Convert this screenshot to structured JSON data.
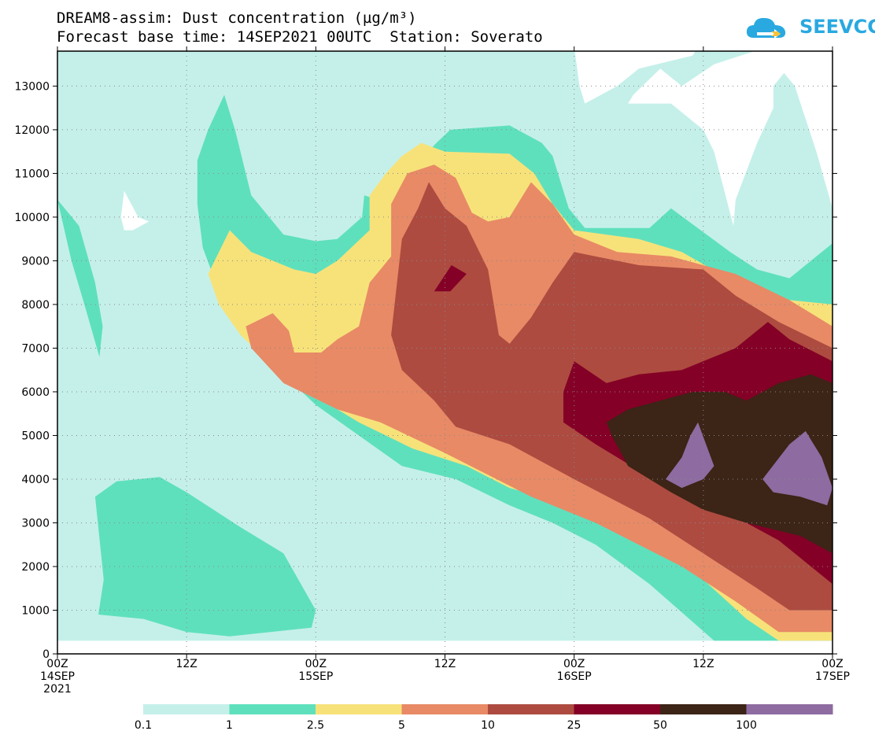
{
  "chart_data": {
    "type": "heatmap",
    "title": "DREAM8-assim: Dust concentration (µg/m³)",
    "subtitle": "Forecast base time: 14SEP2021 00UTC  Station: Soverato",
    "xlabel": "",
    "ylabel": "",
    "x_hours": [
      0,
      12,
      24,
      36,
      48,
      60,
      72
    ],
    "x_tick_labels": [
      {
        "line1": "00Z",
        "line2": "14SEP",
        "line3": "2021"
      },
      {
        "line1": "12Z",
        "line2": "",
        "line3": ""
      },
      {
        "line1": "00Z",
        "line2": "15SEP",
        "line3": ""
      },
      {
        "line1": "12Z",
        "line2": "",
        "line3": ""
      },
      {
        "line1": "00Z",
        "line2": "16SEP",
        "line3": ""
      },
      {
        "line1": "12Z",
        "line2": "",
        "line3": ""
      },
      {
        "line1": "00Z",
        "line2": "17SEP",
        "line3": ""
      }
    ],
    "xlim": [
      0,
      72
    ],
    "y_ticks": [
      0,
      1000,
      2000,
      3000,
      4000,
      5000,
      6000,
      7000,
      8000,
      9000,
      10000,
      11000,
      12000,
      13000
    ],
    "ylim": [
      0,
      13800
    ],
    "grid": true,
    "levels": [
      0.1,
      1,
      2.5,
      5,
      10,
      25,
      50,
      100
    ],
    "level_labels": [
      "0.1",
      "1",
      "2.5",
      "5",
      "10",
      "25",
      "50",
      "100"
    ],
    "colors": [
      "#c5f0ea",
      "#5fe0bd",
      "#f7e27a",
      "#e88a66",
      "#ad4b40",
      "#840026",
      "#3c2416",
      "#8e6ba1"
    ],
    "surface_top_m": 300,
    "contours": [
      {
        "level": 0.1,
        "fill": "#c5f0ea",
        "base": true
      },
      {
        "level": 1,
        "fill": "#5fe0bd",
        "polygons": [
          [
            [
              0,
              10400
            ],
            [
              1.3,
              9000
            ],
            [
              2.5,
              8000
            ],
            [
              3.9,
              6800
            ],
            [
              4.2,
              7500
            ],
            [
              3.5,
              8500
            ],
            [
              2,
              9800
            ],
            [
              0,
              10400
            ]
          ],
          [
            [
              3.5,
              3600
            ],
            [
              5.5,
              3950
            ],
            [
              9.5,
              4050
            ],
            [
              12,
              3700
            ],
            [
              17,
              2900
            ],
            [
              21,
              2300
            ],
            [
              24,
              1000
            ],
            [
              23.6,
              600
            ],
            [
              16,
              400
            ],
            [
              12,
              500
            ],
            [
              8,
              800
            ],
            [
              3.8,
              900
            ],
            [
              4.3,
              1700
            ]
          ],
          [
            [
              13,
              11300
            ],
            [
              14,
              12000
            ],
            [
              15.5,
              12800
            ],
            [
              16.5,
              12000
            ],
            [
              18,
              10500
            ],
            [
              21,
              9600
            ],
            [
              24,
              9450
            ],
            [
              26,
              9500
            ],
            [
              28.3,
              10000
            ],
            [
              28.5,
              10500
            ],
            [
              31,
              10300
            ],
            [
              33,
              10700
            ],
            [
              33.3,
              11200
            ],
            [
              35.2,
              11700
            ],
            [
              36.5,
              12000
            ],
            [
              42,
              12100
            ],
            [
              45,
              11700
            ],
            [
              46,
              11400
            ],
            [
              47.5,
              10200
            ],
            [
              49,
              9750
            ],
            [
              55,
              9750
            ],
            [
              57,
              10200
            ],
            [
              62.5,
              9200
            ],
            [
              65,
              8800
            ],
            [
              68,
              8600
            ],
            [
              70,
              9000
            ],
            [
              72,
              9400
            ],
            [
              72,
              300
            ],
            [
              67,
              300
            ],
            [
              61,
              300
            ],
            [
              55,
              1600
            ],
            [
              50,
              2500
            ],
            [
              46,
              3000
            ],
            [
              42,
              3400
            ],
            [
              37,
              4000
            ],
            [
              32,
              4300
            ],
            [
              28,
              5000
            ],
            [
              24,
              5700
            ],
            [
              21,
              6400
            ],
            [
              17,
              7300
            ],
            [
              15,
              8300
            ],
            [
              13.5,
              9300
            ],
            [
              13,
              10300
            ]
          ]
        ]
      },
      {
        "level": 2.5,
        "fill": "#f7e27a",
        "polygons": [
          [
            [
              14,
              8700
            ],
            [
              16,
              9700
            ],
            [
              18,
              9200
            ],
            [
              22,
              8800
            ],
            [
              24,
              8700
            ],
            [
              26,
              9000
            ],
            [
              29,
              9700
            ],
            [
              29,
              10500
            ],
            [
              30.5,
              11000
            ],
            [
              32,
              11400
            ],
            [
              33.8,
              11700
            ],
            [
              36,
              11500
            ],
            [
              42,
              11450
            ],
            [
              44.3,
              11000
            ],
            [
              46,
              10300
            ],
            [
              48,
              9700
            ],
            [
              54,
              9500
            ],
            [
              58,
              9200
            ],
            [
              63,
              8500
            ],
            [
              68,
              8100
            ],
            [
              72,
              8000
            ],
            [
              72,
              300
            ],
            [
              67,
              300
            ],
            [
              64,
              800
            ],
            [
              60,
              1700
            ],
            [
              54,
              2600
            ],
            [
              48,
              3400
            ],
            [
              42,
              3800
            ],
            [
              38,
              4300
            ],
            [
              33,
              4700
            ],
            [
              28,
              5300
            ],
            [
              24,
              5900
            ],
            [
              20,
              6600
            ],
            [
              17,
              7300
            ],
            [
              15,
              8000
            ]
          ]
        ]
      },
      {
        "level": 5,
        "fill": "#e88a66",
        "polygons": [
          [
            [
              17.5,
              7500
            ],
            [
              20,
              7800
            ],
            [
              21.5,
              7400
            ],
            [
              22,
              6900
            ],
            [
              24.5,
              6900
            ],
            [
              26,
              7200
            ],
            [
              28,
              7500
            ],
            [
              29,
              8500
            ],
            [
              31,
              9100
            ],
            [
              31,
              10300
            ],
            [
              32.5,
              11000
            ],
            [
              35,
              11200
            ],
            [
              37,
              10900
            ],
            [
              38.5,
              10100
            ],
            [
              40,
              9900
            ],
            [
              42,
              10000
            ],
            [
              44,
              10800
            ],
            [
              46,
              10300
            ],
            [
              48,
              9600
            ],
            [
              52,
              9200
            ],
            [
              57,
              9100
            ],
            [
              63,
              8700
            ],
            [
              68,
              8100
            ],
            [
              72,
              7500
            ],
            [
              72,
              500
            ],
            [
              67,
              500
            ],
            [
              63,
              1200
            ],
            [
              58,
              2000
            ],
            [
              50,
              3000
            ],
            [
              44,
              3600
            ],
            [
              36,
              4600
            ],
            [
              30,
              5300
            ],
            [
              26,
              5600
            ],
            [
              21,
              6200
            ],
            [
              18,
              7000
            ]
          ]
        ]
      },
      {
        "level": 10,
        "fill": "#ad4b40",
        "polygons": [
          [
            [
              32,
              9500
            ],
            [
              33.5,
              10200
            ],
            [
              34.5,
              10800
            ],
            [
              36,
              10200
            ],
            [
              38,
              9800
            ],
            [
              40,
              8800
            ],
            [
              41,
              7300
            ],
            [
              42,
              7100
            ],
            [
              44,
              7700
            ],
            [
              46,
              8500
            ],
            [
              48,
              9200
            ],
            [
              54,
              8900
            ],
            [
              60,
              8800
            ],
            [
              63,
              8200
            ],
            [
              67,
              7600
            ],
            [
              72,
              7000
            ],
            [
              72,
              1000
            ],
            [
              68,
              1000
            ],
            [
              65,
              1500
            ],
            [
              60,
              2300
            ],
            [
              55,
              3100
            ],
            [
              48,
              4000
            ],
            [
              42,
              4800
            ],
            [
              37,
              5200
            ],
            [
              35,
              5800
            ],
            [
              32,
              6500
            ],
            [
              31,
              7300
            ]
          ]
        ]
      },
      {
        "level": 25,
        "fill": "#840026",
        "polygons": [
          [
            [
              35,
              8300
            ],
            [
              36.6,
              8900
            ],
            [
              38,
              8700
            ],
            [
              36.5,
              8300
            ]
          ],
          [
            [
              47,
              6000
            ],
            [
              48,
              6700
            ],
            [
              51,
              6200
            ],
            [
              54,
              6400
            ],
            [
              58,
              6500
            ],
            [
              63,
              7000
            ],
            [
              66,
              7600
            ],
            [
              68,
              7200
            ],
            [
              72,
              6700
            ],
            [
              72,
              1600
            ],
            [
              67,
              2600
            ],
            [
              64,
              3000
            ],
            [
              58,
              3600
            ],
            [
              54,
              4200
            ],
            [
              50,
              4800
            ],
            [
              47,
              5300
            ]
          ]
        ]
      },
      {
        "level": 50,
        "fill": "#3c2416",
        "polygons": [
          [
            [
              51,
              5300
            ],
            [
              53,
              5600
            ],
            [
              56,
              5800
            ],
            [
              59,
              6000
            ],
            [
              62,
              6000
            ],
            [
              64,
              5800
            ],
            [
              67,
              6200
            ],
            [
              70,
              6400
            ],
            [
              72,
              6200
            ],
            [
              72,
              2300
            ],
            [
              69,
              2700
            ],
            [
              64,
              3000
            ],
            [
              60,
              3300
            ],
            [
              57,
              3700
            ],
            [
              53,
              4300
            ],
            [
              51.5,
              5000
            ]
          ]
        ]
      },
      {
        "level": 100,
        "fill": "#8e6ba1",
        "polygons": [
          [
            [
              56.5,
              4000
            ],
            [
              58,
              4500
            ],
            [
              58.8,
              5000
            ],
            [
              59.5,
              5300
            ],
            [
              61,
              4300
            ],
            [
              60,
              4000
            ],
            [
              58,
              3800
            ]
          ],
          [
            [
              65.5,
              4000
            ],
            [
              68,
              4800
            ],
            [
              69.5,
              5100
            ],
            [
              71,
              4500
            ],
            [
              72,
              3800
            ],
            [
              71.5,
              3400
            ],
            [
              69,
              3600
            ],
            [
              66.5,
              3700
            ]
          ]
        ]
      },
      {
        "level": 0.0,
        "fill": "#ffffff",
        "polygons": [
          [
            [
              5.9,
              10000
            ],
            [
              6.2,
              10600
            ],
            [
              7.5,
              10000
            ],
            [
              8.5,
              9900
            ],
            [
              7,
              9700
            ],
            [
              6.2,
              9700
            ]
          ],
          [
            [
              53.5,
              12800
            ],
            [
              56,
              13400
            ],
            [
              58,
              13000
            ],
            [
              61,
              13500
            ],
            [
              66,
              13900
            ],
            [
              72,
              13900
            ],
            [
              72,
              10200
            ],
            [
              70.5,
              11500
            ],
            [
              68.5,
              13000
            ],
            [
              67.5,
              13300
            ],
            [
              66.5,
              13000
            ],
            [
              66.5,
              12500
            ],
            [
              65,
              11700
            ],
            [
              63,
              10400
            ],
            [
              62.8,
              9800
            ],
            [
              61,
              11500
            ],
            [
              60,
              12000
            ],
            [
              57,
              12600
            ],
            [
              53,
              12600
            ]
          ],
          [
            [
              48,
              13900
            ],
            [
              59.5,
              13900
            ],
            [
              59,
              13700
            ],
            [
              54,
              13400
            ],
            [
              52,
              13000
            ],
            [
              49,
              12600
            ],
            [
              48.5,
              13000
            ]
          ]
        ]
      }
    ]
  },
  "logo": {
    "text": "SEEVCCC",
    "icon": "cloud-icon"
  }
}
